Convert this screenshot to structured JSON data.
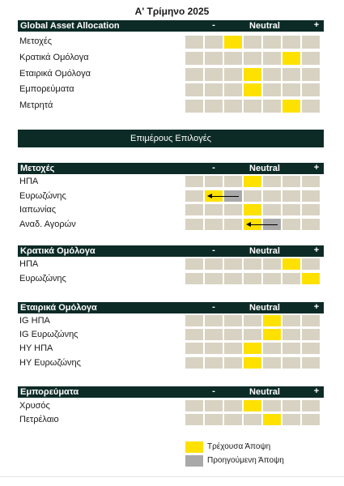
{
  "page_title": "Α' Τρίμηνο 2025",
  "scale": {
    "minus": "-",
    "neutral": "Neutral",
    "plus": "+"
  },
  "subheader": "Επιμέρους Επιλογές",
  "colors": {
    "current": "#ffe100",
    "previous": "#a9a9a9",
    "empty": "#d8d2c2",
    "band": "#0d2b26"
  },
  "sections": [
    {
      "title": "Global Asset Allocation",
      "rows": [
        {
          "label": "Μετοχές",
          "current": 3,
          "previous": null
        },
        {
          "label": "Κρατικά Ομόλογα",
          "current": 6,
          "previous": null
        },
        {
          "label": "Εταιρικά Ομόλογα",
          "current": 4,
          "previous": null
        },
        {
          "label": "Εμπορεύματα",
          "current": 4,
          "previous": null
        },
        {
          "label": "Μετρητά",
          "current": 6,
          "previous": null
        }
      ]
    },
    {
      "title": "Μετοχές",
      "rows": [
        {
          "label": "ΗΠΑ",
          "current": 4,
          "previous": null
        },
        {
          "label": "Ευρωζώνης",
          "current": 2,
          "previous": 3
        },
        {
          "label": "Ιαπωνίας",
          "current": 4,
          "previous": null
        },
        {
          "label": "Αναδ. Αγορών",
          "current": 4,
          "previous": 5
        }
      ]
    },
    {
      "title": "Κρατικά Ομόλογα",
      "rows": [
        {
          "label": "ΗΠΑ",
          "current": 6,
          "previous": null
        },
        {
          "label": "Ευρωζώνης",
          "current": 7,
          "previous": null
        }
      ]
    },
    {
      "title": "Εταιρικά Ομόλογα",
      "rows": [
        {
          "label": "IG ΗΠΑ",
          "current": 5,
          "previous": null
        },
        {
          "label": "IG Ευρωζώνης",
          "current": 5,
          "previous": null
        },
        {
          "label": "HY ΗΠΑ",
          "current": 4,
          "previous": null
        },
        {
          "label": "HY Ευρωζώνης",
          "current": 4,
          "previous": null
        }
      ]
    },
    {
      "title": "Εμπορεύματα",
      "rows": [
        {
          "label": "Χρυσός",
          "current": 4,
          "previous": null
        },
        {
          "label": "Πετρέλαιο",
          "current": 5,
          "previous": null
        }
      ]
    }
  ],
  "legend": {
    "current": "Τρέχουσα Άποψη",
    "previous": "Προηγούμενη Άποψη"
  }
}
